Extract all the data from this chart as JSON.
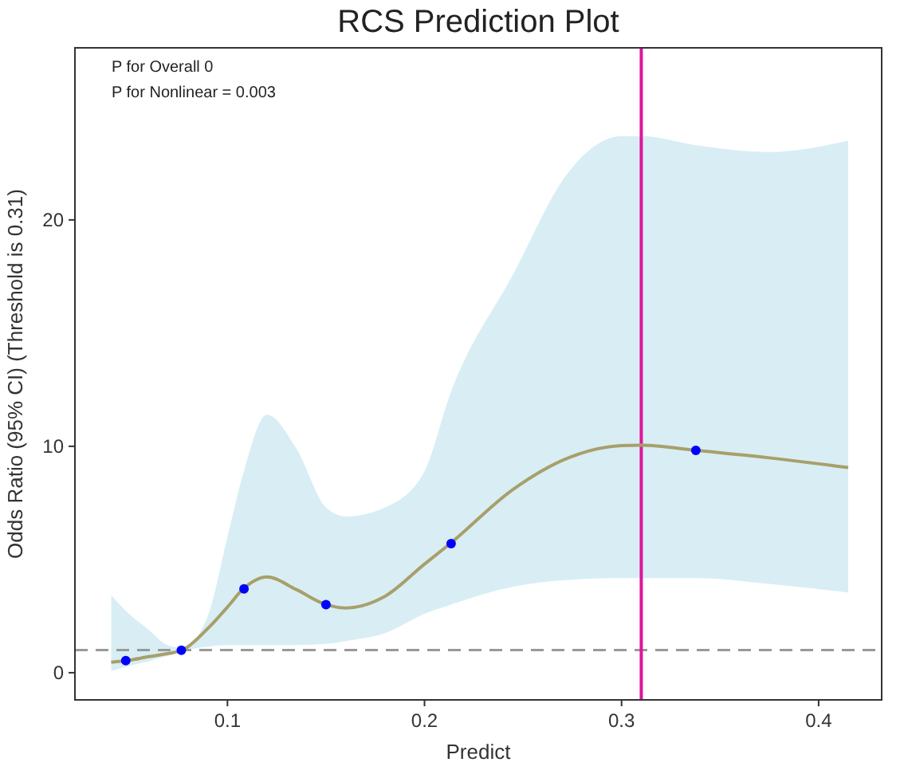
{
  "chart_data": {
    "type": "line",
    "title": "RCS Prediction Plot",
    "xlabel": "Predict",
    "ylabel": "Odds Ratio (95% CI) (Threshold is 0.31)",
    "annotations": [
      "P for Overall 0",
      "P for Nonlinear = 0.003"
    ],
    "xlim": [
      0.0226,
      0.432
    ],
    "ylim": [
      -1.2,
      27.6
    ],
    "xticks": [
      0.1,
      0.2,
      0.3,
      0.4
    ],
    "yticks": [
      0,
      10,
      20
    ],
    "grid": false,
    "x": [
      0.041,
      0.05,
      0.06,
      0.07,
      0.077,
      0.09,
      0.1,
      0.108,
      0.12,
      0.135,
      0.15,
      0.16,
      0.18,
      0.2,
      0.213,
      0.245,
      0.273,
      0.3,
      0.31,
      0.338,
      0.375,
      0.415
    ],
    "series": [
      {
        "color": "#a89f6b",
        "values": [
          0.46,
          0.55,
          0.71,
          0.85,
          0.99,
          1.95,
          2.9,
          3.7,
          4.23,
          3.67,
          3.01,
          2.86,
          3.38,
          4.8,
          5.7,
          8.1,
          9.49,
          10.03,
          10.05,
          9.82,
          9.49,
          9.06
        ],
        "lower": [
          0.08,
          0.3,
          0.51,
          0.75,
          0.95,
          1.15,
          1.22,
          1.22,
          1.22,
          1.22,
          1.27,
          1.4,
          1.75,
          2.6,
          3.0,
          3.8,
          4.1,
          4.18,
          4.18,
          4.18,
          3.92,
          3.54
        ],
        "upper": [
          3.42,
          2.6,
          1.9,
          1.2,
          1.1,
          2.5,
          6.0,
          8.8,
          11.4,
          9.9,
          7.3,
          6.9,
          7.3,
          8.9,
          12.3,
          17.6,
          22.1,
          23.7,
          23.7,
          23.3,
          23.0,
          23.5
        ]
      },
      {
        "type": "scatter",
        "color": "#0000ff",
        "marker": "circle",
        "x": [
          0.0484,
          0.0766,
          0.1084,
          0.15,
          0.2135,
          0.3377
        ],
        "values": [
          0.53,
          0.99,
          3.7,
          3.01,
          5.7,
          9.82
        ]
      }
    ],
    "ref_lines": [
      {
        "axis": "y",
        "value": 1,
        "color": "#999999",
        "line_style": "dashed"
      },
      {
        "axis": "x",
        "value": 0.31,
        "color": "#e0149a",
        "line_style": "solid"
      }
    ]
  }
}
